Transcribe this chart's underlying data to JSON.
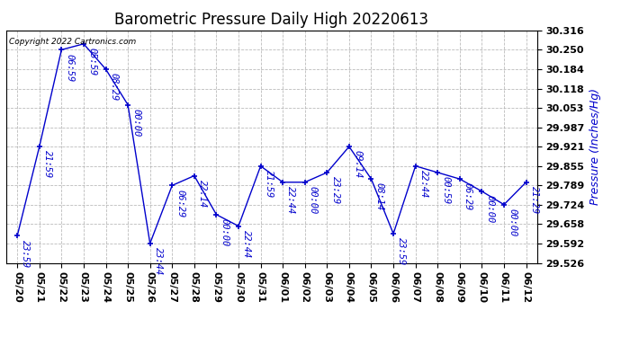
{
  "title": "Barometric Pressure Daily High 20220613",
  "ylabel": "Pressure (Inches/Hg)",
  "copyright_text": "Copyright 2022 Cartronics.com",
  "background_color": "#ffffff",
  "line_color": "#0000cc",
  "grid_color": "#aaaaaa",
  "ylim": [
    29.526,
    30.316
  ],
  "yticks": [
    29.526,
    29.592,
    29.658,
    29.724,
    29.789,
    29.855,
    29.921,
    29.987,
    30.053,
    30.118,
    30.184,
    30.25,
    30.316
  ],
  "dates": [
    "05/20",
    "05/21",
    "05/22",
    "05/23",
    "05/24",
    "05/25",
    "05/26",
    "05/27",
    "05/28",
    "05/29",
    "05/30",
    "05/31",
    "06/01",
    "06/02",
    "06/03",
    "06/04",
    "06/05",
    "06/06",
    "06/07",
    "06/08",
    "06/09",
    "06/10",
    "06/11",
    "06/12"
  ],
  "values": [
    29.618,
    29.921,
    30.25,
    30.27,
    30.184,
    30.063,
    29.592,
    29.789,
    29.822,
    29.69,
    29.651,
    29.855,
    29.8,
    29.8,
    29.833,
    29.921,
    29.811,
    29.625,
    29.855,
    29.833,
    29.811,
    29.769,
    29.724,
    29.8
  ],
  "time_labels": [
    "23:59",
    "21:59",
    "06:59",
    "05:59",
    "08:29",
    "00:00",
    "23:44",
    "06:29",
    "22:14",
    "00:00",
    "22:44",
    "21:59",
    "22:44",
    "00:00",
    "23:29",
    "09:14",
    "08:14",
    "23:59",
    "22:44",
    "00:59",
    "06:29",
    "00:00",
    "00:00",
    "21:29"
  ],
  "title_fontsize": 12,
  "ylabel_fontsize": 9,
  "tick_fontsize": 8,
  "annotation_fontsize": 7.5,
  "fig_width": 6.9,
  "fig_height": 3.75,
  "dpi": 100
}
